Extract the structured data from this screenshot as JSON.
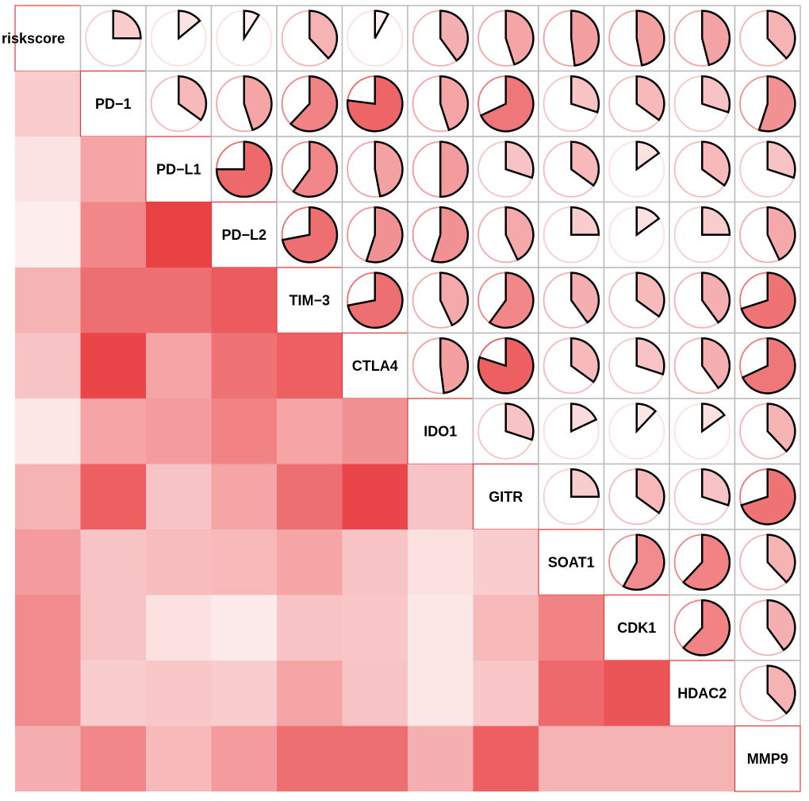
{
  "chart_data": {
    "type": "heatmap",
    "title": "",
    "subtitle": "",
    "style": "correlogram: lower triangle = shaded squares, upper triangle = pie glyphs, diagonal = variable names",
    "variables": [
      "riskscore",
      "PD−1",
      "PD−L1",
      "PD−L2",
      "TIM−3",
      "CTLA4",
      "IDO1",
      "GITR",
      "SOAT1",
      "CDK1",
      "HDAC2",
      "MMP9"
    ],
    "correlation_range": [
      0,
      1
    ],
    "colors": {
      "high": "#e8373a",
      "low": "#ffffff",
      "grid": "#bbbbbb",
      "diagonal_border": "#e8373a",
      "pie_outline": "#000000"
    },
    "matrix": [
      [
        1.0,
        0.25,
        0.14,
        0.09,
        0.38,
        0.08,
        0.4,
        0.45,
        0.48,
        0.47,
        0.46,
        0.38
      ],
      [
        0.25,
        1.0,
        0.35,
        0.45,
        0.62,
        0.77,
        0.45,
        0.68,
        0.3,
        0.35,
        0.3,
        0.55
      ],
      [
        0.14,
        0.45,
        1.0,
        0.75,
        0.6,
        0.47,
        0.5,
        0.3,
        0.35,
        0.15,
        0.35,
        0.3
      ],
      [
        0.09,
        0.6,
        0.95,
        1.0,
        0.72,
        0.55,
        0.55,
        0.43,
        0.25,
        0.15,
        0.25,
        0.43
      ],
      [
        0.38,
        0.72,
        0.72,
        0.82,
        1.0,
        0.72,
        0.43,
        0.6,
        0.4,
        0.35,
        0.4,
        0.7
      ],
      [
        0.3,
        0.93,
        0.45,
        0.7,
        0.8,
        1.0,
        0.48,
        0.8,
        0.35,
        0.3,
        0.4,
        0.68
      ],
      [
        0.12,
        0.45,
        0.5,
        0.62,
        0.45,
        0.55,
        1.0,
        0.3,
        0.18,
        0.12,
        0.15,
        0.38
      ],
      [
        0.38,
        0.8,
        0.3,
        0.45,
        0.72,
        0.93,
        0.3,
        1.0,
        0.25,
        0.35,
        0.3,
        0.7
      ],
      [
        0.5,
        0.3,
        0.33,
        0.35,
        0.45,
        0.3,
        0.15,
        0.25,
        1.0,
        0.58,
        0.62,
        0.38
      ],
      [
        0.58,
        0.3,
        0.15,
        0.1,
        0.3,
        0.28,
        0.12,
        0.35,
        0.62,
        1.0,
        0.62,
        0.4
      ],
      [
        0.58,
        0.25,
        0.28,
        0.25,
        0.45,
        0.3,
        0.12,
        0.28,
        0.75,
        0.85,
        1.0,
        0.38
      ],
      [
        0.4,
        0.6,
        0.35,
        0.5,
        0.72,
        0.72,
        0.4,
        0.8,
        0.38,
        0.38,
        0.38,
        1.0
      ]
    ]
  }
}
